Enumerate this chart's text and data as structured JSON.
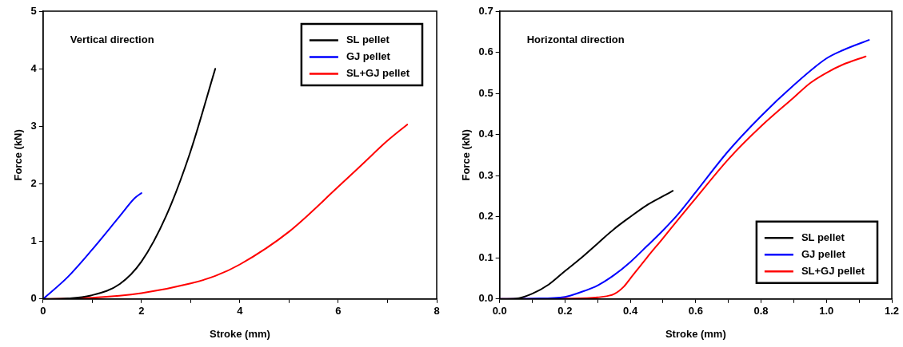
{
  "chart_data": [
    {
      "type": "line",
      "xlabel": "Stroke (mm)",
      "ylabel": "Force (kN)",
      "annotations": [
        "Vertical direction"
      ],
      "xlim": [
        0,
        8
      ],
      "xticks": [
        0,
        {
          "value": 1,
          "label": null
        },
        2,
        {
          "value": 3,
          "label": null
        },
        4,
        {
          "value": 5,
          "label": null
        },
        6,
        {
          "value": 7,
          "label": null
        },
        8
      ],
      "ylim": [
        0,
        5
      ],
      "yticks": [
        0,
        1,
        2,
        3,
        4,
        5
      ],
      "grid": false,
      "legend": "top right",
      "marker": "none",
      "line_style": "solid",
      "series": [
        {
          "name": "SL pellet",
          "color": "#000000",
          "x": [
            0,
            0.5,
            0.97,
            1.56,
            2,
            2.5,
            2.98,
            3.5
          ],
          "values": [
            0,
            0.01,
            0.06,
            0.26,
            0.65,
            1.44,
            2.52,
            4.0
          ]
        },
        {
          "name": "GJ pellet",
          "color": "#0000ff",
          "x": [
            0,
            0.5,
            0.97,
            1.56,
            1.86,
            2
          ],
          "values": [
            0,
            0.38,
            0.83,
            1.44,
            1.75,
            1.84
          ]
        },
        {
          "name": "SL+GJ pellet",
          "color": "#ff0000",
          "x": [
            0,
            1,
            2,
            3,
            3.5,
            4,
            5,
            6,
            6.5,
            7,
            7.4
          ],
          "values": [
            0,
            0.02,
            0.1,
            0.27,
            0.4,
            0.6,
            1.17,
            1.95,
            2.35,
            2.75,
            3.03
          ]
        }
      ]
    },
    {
      "type": "line",
      "xlabel": "Stroke (mm)",
      "ylabel": "Force (kN)",
      "annotations": [
        "Horizontal direction"
      ],
      "xlim": [
        0,
        1.2
      ],
      "xticks": [
        {
          "value": 0,
          "label": "0.0"
        },
        {
          "value": 0.1,
          "label": null
        },
        {
          "value": 0.2,
          "label": "0.2"
        },
        {
          "value": 0.3,
          "label": null
        },
        {
          "value": 0.4,
          "label": "0.4"
        },
        {
          "value": 0.5,
          "label": null
        },
        {
          "value": 0.6,
          "label": "0.6"
        },
        {
          "value": 0.7,
          "label": null
        },
        {
          "value": 0.8,
          "label": "0.8"
        },
        {
          "value": 0.9,
          "label": null
        },
        {
          "value": 1.0,
          "label": "1.0"
        },
        {
          "value": 1.1,
          "label": null
        },
        {
          "value": 1.2,
          "label": "1.2"
        }
      ],
      "ylim": [
        0,
        0.7
      ],
      "yticks": [
        {
          "value": 0,
          "label": "0.0"
        },
        {
          "value": 0.1,
          "label": "0.1"
        },
        {
          "value": 0.2,
          "label": "0.2"
        },
        {
          "value": 0.3,
          "label": "0.3"
        },
        {
          "value": 0.4,
          "label": "0.4"
        },
        {
          "value": 0.5,
          "label": "0.5"
        },
        {
          "value": 0.6,
          "label": "0.6"
        },
        {
          "value": 0.7,
          "label": "0.7"
        }
      ],
      "grid": false,
      "legend": "bottom right",
      "marker": "none",
      "line_style": "solid",
      "series": [
        {
          "name": "SL pellet",
          "color": "#000000",
          "x": [
            0,
            0.05,
            0.1,
            0.15,
            0.2,
            0.25,
            0.3,
            0.35,
            0.4,
            0.45,
            0.5,
            0.53
          ],
          "values": [
            0,
            0.001,
            0.013,
            0.035,
            0.068,
            0.1,
            0.135,
            0.17,
            0.2,
            0.228,
            0.25,
            0.263
          ]
        },
        {
          "name": "GJ pellet",
          "color": "#0000ff",
          "x": [
            0,
            0.1,
            0.2,
            0.25,
            0.3,
            0.35,
            0.4,
            0.45,
            0.5,
            0.55,
            0.6,
            0.7,
            0.8,
            0.9,
            1.0,
            1.05,
            1.13
          ],
          "values": [
            0,
            0.001,
            0.005,
            0.017,
            0.033,
            0.058,
            0.09,
            0.128,
            0.167,
            0.21,
            0.26,
            0.36,
            0.445,
            0.52,
            0.585,
            0.605,
            0.63
          ]
        },
        {
          "name": "SL+GJ pellet",
          "color": "#ff0000",
          "x": [
            0,
            0.2,
            0.3,
            0.35,
            0.38,
            0.4,
            0.45,
            0.5,
            0.55,
            0.6,
            0.7,
            0.8,
            0.9,
            0.95,
            1.0,
            1.05,
            1.12
          ],
          "values": [
            0,
            0.001,
            0.004,
            0.012,
            0.03,
            0.05,
            0.1,
            0.148,
            0.197,
            0.245,
            0.34,
            0.42,
            0.49,
            0.525,
            0.55,
            0.57,
            0.59
          ]
        }
      ]
    }
  ]
}
